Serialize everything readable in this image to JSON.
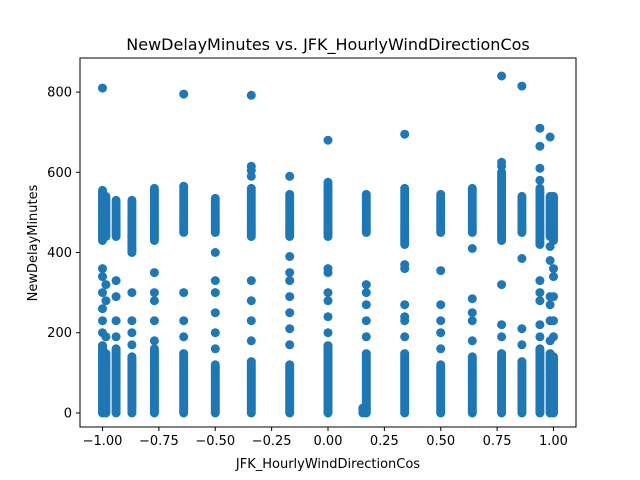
{
  "chart_data": {
    "type": "scatter",
    "title": "NewDelayMinutes vs. JFK_HourlyWindDirectionCos",
    "xlabel": "JFK_HourlyWindDirectionCos",
    "ylabel": "NewDelayMinutes",
    "xlim": [
      -1.1,
      1.1
    ],
    "ylim": [
      -35,
      885
    ],
    "xticks": [
      -1.0,
      -0.75,
      -0.5,
      -0.25,
      0.0,
      0.25,
      0.5,
      0.75,
      1.0
    ],
    "xtick_labels": [
      "−1.00",
      "−0.75",
      "−0.50",
      "−0.25",
      "0.00",
      "0.25",
      "0.50",
      "0.75",
      "1.00"
    ],
    "yticks": [
      0,
      200,
      400,
      600,
      800
    ],
    "ytick_labels": [
      "0",
      "200",
      "400",
      "600",
      "800"
    ],
    "grid": false,
    "marker_color": "#1f77b4",
    "columns": [
      {
        "x": -1.0,
        "dense_max": 170,
        "low": [
          200,
          230,
          260,
          300,
          340,
          360
        ],
        "cluster": [
          430,
          555
        ],
        "outliers": [
          810
        ]
      },
      {
        "x": -0.985,
        "dense_max": 150,
        "low": [
          190,
          280,
          320
        ],
        "cluster": [
          440,
          540
        ],
        "outliers": []
      },
      {
        "x": -0.94,
        "dense_max": 160,
        "low": [
          190,
          230,
          290,
          330
        ],
        "cluster": [
          440,
          530
        ],
        "outliers": []
      },
      {
        "x": -0.87,
        "dense_max": 140,
        "low": [
          170,
          200,
          230,
          300
        ],
        "cluster": [
          400,
          530
        ],
        "outliers": []
      },
      {
        "x": -0.77,
        "dense_max": 160,
        "low": [
          180,
          230,
          280,
          300,
          350
        ],
        "cluster": [
          430,
          560
        ],
        "outliers": []
      },
      {
        "x": -0.64,
        "dense_max": 150,
        "low": [
          190,
          230,
          300
        ],
        "cluster": [
          450,
          565
        ],
        "outliers": [
          795
        ]
      },
      {
        "x": -0.5,
        "dense_max": 120,
        "low": [
          160,
          200,
          250,
          300,
          330,
          400
        ],
        "cluster": [
          450,
          535
        ],
        "outliers": []
      },
      {
        "x": -0.34,
        "dense_max": 130,
        "low": [
          180,
          230,
          280,
          330
        ],
        "cluster": [
          440,
          560
        ],
        "outliers": [
          590,
          605,
          615,
          792
        ]
      },
      {
        "x": -0.17,
        "dense_max": 120,
        "low": [
          170,
          210,
          250,
          290,
          330,
          350,
          390
        ],
        "cluster": [
          440,
          545
        ],
        "outliers": [
          590
        ]
      },
      {
        "x": 0.0,
        "dense_max": 170,
        "low": [
          200,
          240,
          280,
          300,
          350,
          360
        ],
        "cluster": [
          440,
          575
        ],
        "outliers": [
          680
        ]
      },
      {
        "x": 0.155,
        "dense_max": 12,
        "low": [],
        "cluster": [],
        "outliers": []
      },
      {
        "x": 0.17,
        "dense_max": 150,
        "low": [
          190,
          230,
          270,
          300,
          320
        ],
        "cluster": [
          450,
          545
        ],
        "outliers": []
      },
      {
        "x": 0.34,
        "dense_max": 150,
        "low": [
          190,
          230,
          240,
          270,
          360,
          370
        ],
        "cluster": [
          420,
          560
        ],
        "outliers": [
          695
        ]
      },
      {
        "x": 0.5,
        "dense_max": 120,
        "low": [
          160,
          200,
          230,
          270,
          355
        ],
        "cluster": [
          450,
          545
        ],
        "outliers": []
      },
      {
        "x": 0.64,
        "dense_max": 140,
        "low": [
          180,
          230,
          250,
          285,
          410
        ],
        "cluster": [
          450,
          560
        ],
        "outliers": []
      },
      {
        "x": 0.77,
        "dense_max": 150,
        "low": [
          190,
          220,
          320
        ],
        "cluster": [
          430,
          600
        ],
        "outliers": [
          615,
          625,
          840
        ]
      },
      {
        "x": 0.86,
        "dense_max": 130,
        "low": [
          170,
          210,
          385
        ],
        "cluster": [
          450,
          540
        ],
        "outliers": [
          815
        ]
      },
      {
        "x": 0.94,
        "dense_max": 160,
        "low": [
          190,
          220,
          280,
          300,
          330
        ],
        "cluster": [
          420,
          560
        ],
        "outliers": [
          580,
          610,
          665,
          710
        ]
      },
      {
        "x": 0.985,
        "dense_max": 150,
        "low": [
          180,
          230,
          270,
          290,
          380,
          415
        ],
        "cluster": [
          440,
          540
        ],
        "outliers": [
          688
        ]
      },
      {
        "x": 1.0,
        "dense_max": 140,
        "low": [
          190,
          230,
          290,
          340,
          360
        ],
        "cluster": [
          430,
          540
        ],
        "outliers": []
      }
    ]
  }
}
